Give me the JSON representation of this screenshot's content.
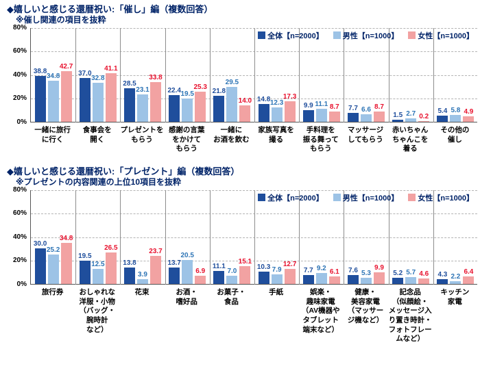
{
  "accent_colors": {
    "title_navy": "#002368",
    "series_total": "#1F4E9C",
    "series_male": "#9DC3E6",
    "series_female": "#F2A2A2",
    "label_total": "#1F4E9C",
    "label_male": "#2E75B6",
    "label_female": "#E8112D"
  },
  "chart_data": [
    {
      "type": "bar",
      "title": "◆嬉しいと感じる還暦祝い:「催し」編（複数回答）",
      "subtitle": "※催し関連の項目を抜粋",
      "ylim": [
        0,
        80
      ],
      "yticks": [
        "0%",
        "20%",
        "40%",
        "60%",
        "80%"
      ],
      "grid": "dashed-horizontal",
      "legend_position": "top-right-inside",
      "categories": [
        "一緒に旅行\nに行く",
        "食事会を\n開く",
        "プレゼントを\nもらう",
        "感謝の言葉\nをかけて\nもらう",
        "一緒に\nお酒を飲む",
        "家族写真を\n撮る",
        "手料理を\n振る舞って\nもらう",
        "マッサージ\nしてもらう",
        "赤いちゃん\nちゃんこを\n着る",
        "その他の\n催し"
      ],
      "series": [
        {
          "name": "全体【n=2000】",
          "color": "#1F4E9C",
          "label_color": "#1F4E9C",
          "values": [
            38.8,
            37.0,
            28.5,
            22.4,
            21.8,
            14.8,
            9.9,
            7.7,
            1.5,
            5.4
          ]
        },
        {
          "name": "男性【n=1000】",
          "color": "#9DC3E6",
          "label_color": "#2E75B6",
          "values": [
            34.8,
            32.8,
            23.1,
            19.5,
            29.5,
            12.3,
            11.1,
            6.6,
            2.7,
            5.8
          ]
        },
        {
          "name": "女性【n=1000】",
          "color": "#F2A2A2",
          "label_color": "#E8112D",
          "values": [
            42.7,
            41.1,
            33.8,
            25.3,
            14.0,
            17.3,
            8.7,
            8.7,
            0.2,
            4.9
          ]
        }
      ],
      "label_area": 58
    },
    {
      "type": "bar",
      "title": "◆嬉しいと感じる還暦祝い:「プレゼント」編（複数回答）",
      "subtitle": "※プレゼントの内容関連の上位10項目を抜粋",
      "ylim": [
        0,
        80
      ],
      "yticks": [
        "0%",
        "20%",
        "40%",
        "60%",
        "80%"
      ],
      "grid": "dashed-horizontal",
      "legend_position": "top-right-inside",
      "categories": [
        "旅行券",
        "おしゃれな\n洋服・小物\n（バッグ・\n腕時計\nなど）",
        "花束",
        "お酒・\n嗜好品",
        "お菓子・\n食品",
        "手紙",
        "娯楽・\n趣味家電\n（AV機器や\nタブレット\n端末など）",
        "健康・\n美容家電\n（マッサー\nジ機など）",
        "記念品\n（似顔絵・\nメッセージ入\nり置き時計・\nフォトフレー\nムなど）",
        "キッチン\n家電"
      ],
      "series": [
        {
          "name": "全体【n=2000】",
          "color": "#1F4E9C",
          "label_color": "#1F4E9C",
          "values": [
            30.0,
            19.5,
            13.8,
            13.7,
            11.1,
            10.3,
            7.7,
            7.6,
            5.2,
            4.3
          ]
        },
        {
          "name": "男性【n=1000】",
          "color": "#9DC3E6",
          "label_color": "#2E75B6",
          "values": [
            25.2,
            12.5,
            3.9,
            20.5,
            7.0,
            7.9,
            9.2,
            5.3,
            5.7,
            2.2
          ]
        },
        {
          "name": "女性【n=1000】",
          "color": "#F2A2A2",
          "label_color": "#E8112D",
          "values": [
            34.8,
            26.5,
            23.7,
            6.9,
            15.1,
            12.7,
            6.1,
            9.9,
            4.6,
            6.4
          ]
        }
      ],
      "label_area": 118
    }
  ]
}
